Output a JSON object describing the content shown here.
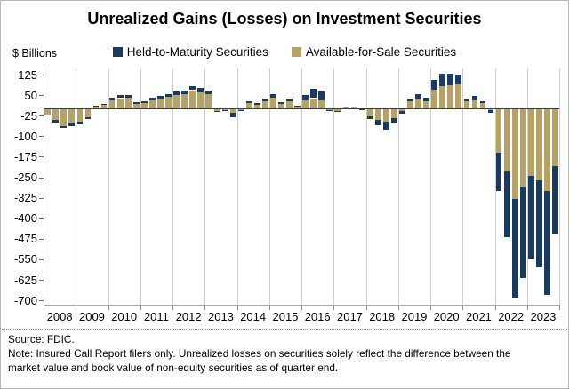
{
  "title": "Unrealized Gains (Losses) on Investment Securities",
  "y_axis_label": "$ Billions",
  "legend": [
    {
      "label": "Held-to-Maturity Securities",
      "color": "#1b3b5e"
    },
    {
      "label": "Available-for-Sale Securities",
      "color": "#b4a267"
    }
  ],
  "footer": {
    "source": "Source: FDIC.",
    "note_line1": "Note: Insured Call Report filers only. Unrealized losses on securities solely reflect the difference between the",
    "note_line2": "market value and book value of non-equity securities as of quarter end."
  },
  "chart_data": {
    "type": "bar",
    "stacked": true,
    "unit": "$ Billions",
    "title": "Unrealized Gains (Losses) on Investment Securities",
    "legend_position": "top",
    "grid": "vertical-year-lines",
    "years": [
      2008,
      2009,
      2010,
      2011,
      2012,
      2013,
      2014,
      2015,
      2016,
      2017,
      2018,
      2019,
      2020,
      2021,
      2022,
      2023
    ],
    "quarters_per_year": 4,
    "y_ticks": [
      125,
      50,
      -25,
      -100,
      -175,
      -250,
      -325,
      -400,
      -475,
      -550,
      -625,
      -700
    ],
    "y_range": [
      -717,
      148
    ],
    "series": [
      {
        "name": "Held-to-Maturity Securities",
        "color": "#1b3b5e",
        "values": [
          -3,
          -8,
          -7,
          -13,
          -10,
          -7,
          2,
          3,
          10,
          10,
          10,
          5,
          6,
          8,
          10,
          12,
          12,
          14,
          16,
          15,
          13,
          -4,
          -3,
          -16,
          -4,
          7,
          7,
          10,
          13,
          6,
          9,
          3,
          20,
          33,
          33,
          -3,
          -4,
          0,
          2,
          -1,
          -10,
          -19,
          -27,
          -18,
          -8,
          10,
          17,
          12,
          35,
          46,
          41,
          35,
          10,
          16,
          6,
          -10,
          -140,
          -240,
          -360,
          -335,
          -305,
          -320,
          -380,
          -250
        ]
      },
      {
        "name": "Available-for-Sale Securities",
        "color": "#b4a267",
        "values": [
          -21,
          -42,
          -63,
          -50,
          -47,
          -30,
          9,
          14,
          32,
          39,
          42,
          18,
          22,
          32,
          38,
          43,
          50,
          54,
          68,
          60,
          55,
          -7,
          -5,
          -15,
          -4,
          22,
          14,
          27,
          41,
          18,
          28,
          8,
          32,
          39,
          32,
          -6,
          -8,
          4,
          6,
          -3,
          -26,
          -41,
          -48,
          -35,
          -8,
          27,
          36,
          28,
          70,
          84,
          86,
          90,
          27,
          31,
          21,
          -5,
          -160,
          -230,
          -330,
          -285,
          -245,
          -260,
          -300,
          -210
        ]
      }
    ]
  }
}
